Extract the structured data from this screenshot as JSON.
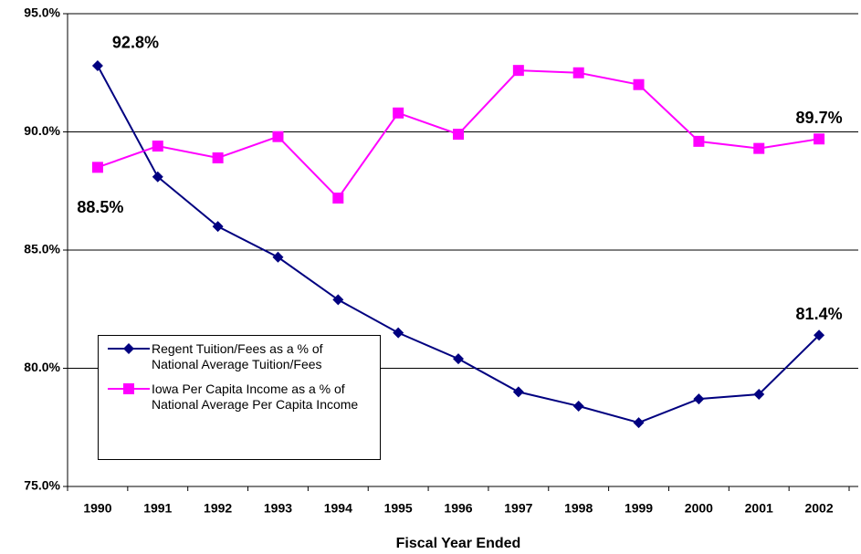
{
  "chart_data": {
    "type": "line",
    "x_label": "Fiscal Year Ended",
    "categories": [
      "1990",
      "1991",
      "1992",
      "1993",
      "1994",
      "1995",
      "1996",
      "1997",
      "1998",
      "1999",
      "2000",
      "2001",
      "2002"
    ],
    "series": [
      {
        "name": "Regent Tuition/Fees as a % of National Average Tuition/Fees",
        "color": "#000080",
        "marker": "diamond",
        "values": [
          92.8,
          88.1,
          86.0,
          84.7,
          82.9,
          81.5,
          80.4,
          79.0,
          78.4,
          77.7,
          78.7,
          78.9,
          81.4
        ],
        "value_labels": [
          "92.8%",
          null,
          null,
          null,
          null,
          null,
          null,
          null,
          null,
          null,
          null,
          null,
          "81.4%"
        ]
      },
      {
        "name": "Iowa Per Capita Income as a % of National Average Per Capita Income",
        "color": "#ff00ff",
        "marker": "square",
        "values": [
          88.5,
          89.4,
          88.9,
          89.8,
          87.2,
          90.8,
          89.9,
          92.6,
          92.5,
          92.0,
          89.6,
          89.3,
          89.7
        ],
        "value_labels": [
          "88.5%",
          null,
          null,
          null,
          null,
          null,
          null,
          null,
          null,
          null,
          null,
          null,
          "89.7%"
        ]
      }
    ],
    "ylim": [
      75,
      95
    ],
    "yticks": [
      {
        "value": 75,
        "label": "75.0%"
      },
      {
        "value": 80,
        "label": "80.0%"
      },
      {
        "value": 85,
        "label": "85.0%"
      },
      {
        "value": 90,
        "label": "90.0%"
      },
      {
        "value": 95,
        "label": "95.0%"
      }
    ],
    "grid": true
  }
}
